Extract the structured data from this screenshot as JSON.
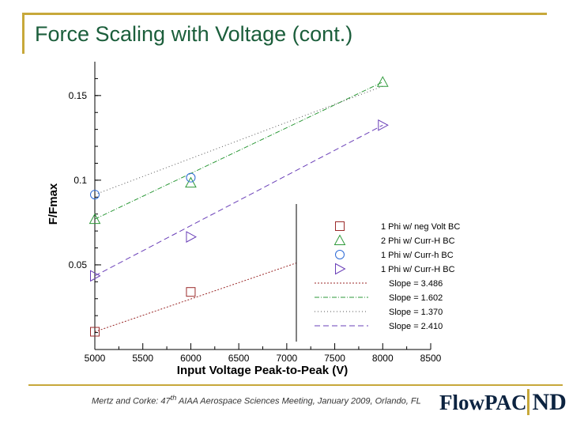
{
  "slide": {
    "title": "Force Scaling with Voltage (cont.)",
    "citation": "Mertz and Corke: 47",
    "citation_sup": "th",
    "citation_rest": " AIAA Aerospace Sciences Meeting, January 2009, Orlando, FL",
    "logo_text": "FlowPAC",
    "logo_mark": "ND",
    "accent_color": "#c7a83a",
    "title_color": "#1b5e3b"
  },
  "chart_data": {
    "type": "scatter",
    "xlabel": "Input Voltage Peak-to-Peak (V)",
    "ylabel": "F/Fmax",
    "xlim": [
      5000,
      8500
    ],
    "ylim": [
      0,
      0.17
    ],
    "x_ticks": [
      5000,
      5500,
      6000,
      6500,
      7000,
      7500,
      8000,
      8500
    ],
    "x_tick_labels": [
      "5000",
      "5500",
      "6000",
      "6500",
      "7000",
      "7500",
      "8000",
      "8500"
    ],
    "y_ticks": [
      0.05,
      0.1,
      0.15
    ],
    "y_tick_labels": [
      "0.05",
      "0.1",
      "0.15"
    ],
    "grid": false,
    "legend_position": "bottom-right",
    "series": [
      {
        "name": "1 Phi w/ neg Volt BC",
        "marker": "square",
        "color": "#9b2a2a",
        "x": [
          5000,
          6000,
          8000
        ],
        "y": [
          0.0105,
          0.034,
          0.0685
        ]
      },
      {
        "name": "2 Phi w/ Curr-H BC",
        "marker": "triangle-up",
        "color": "#2e9a3a",
        "x": [
          5000,
          6000,
          8000
        ],
        "y": [
          0.077,
          0.0985,
          0.158
        ]
      },
      {
        "name": "1 Phi w/ Curr-h BC",
        "marker": "circle",
        "color": "#2e6bd6",
        "x": [
          5000,
          6000
        ],
        "y": [
          0.0915,
          0.1015
        ]
      },
      {
        "name": "1 Phi w/ Curr-H BC",
        "marker": "triangle-right",
        "color": "#6a3fb8",
        "x": [
          5000,
          6000,
          8000
        ],
        "y": [
          0.0435,
          0.0665,
          0.1325
        ]
      }
    ],
    "fits": [
      {
        "label": "Slope = 3.486",
        "color": "#9b2a2a",
        "dash": "2,2",
        "x": [
          5000,
          8000
        ],
        "y": [
          0.0105,
          0.0685
        ]
      },
      {
        "label": "Slope = 1.602",
        "color": "#2e9a3a",
        "dash": "6,2,1,2",
        "x": [
          5000,
          8000
        ],
        "y": [
          0.077,
          0.158
        ]
      },
      {
        "label": "Slope = 1.370",
        "color": "#555555",
        "dash": "1,3",
        "x": [
          5000,
          8000
        ],
        "y": [
          0.0915,
          0.1555
        ]
      },
      {
        "label": "Slope = 2.410",
        "color": "#6a3fb8",
        "dash": "7,4",
        "x": [
          5000,
          8000
        ],
        "y": [
          0.0435,
          0.1325
        ]
      }
    ]
  }
}
